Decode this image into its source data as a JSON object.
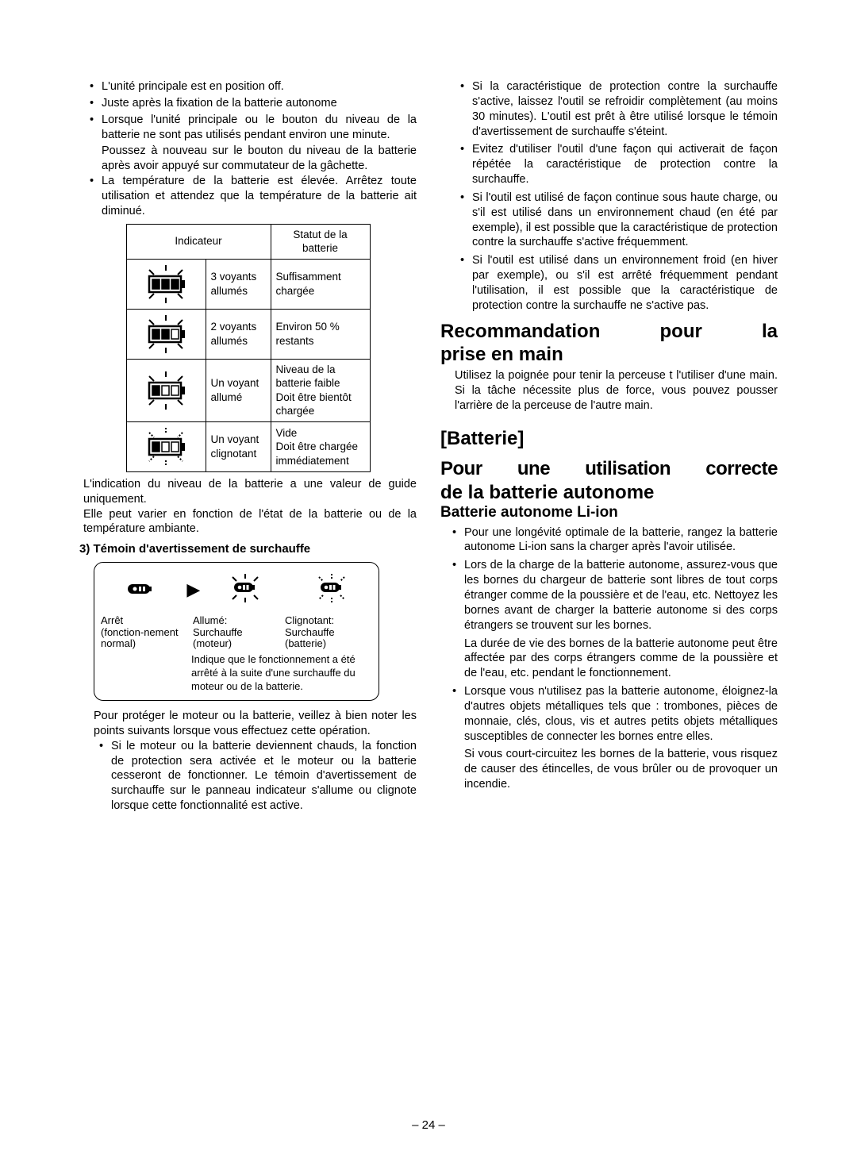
{
  "page_number": "– 24 –",
  "left": {
    "bullets1": [
      "L'unité principale est en position off.",
      "Juste après la fixation de la batterie autonome",
      "Lorsque l'unité principale ou le bouton du niveau de la batterie ne sont pas utilisés pendant environ une minute."
    ],
    "bullets1_sub": "Poussez à nouveau sur le bouton du niveau de la batterie après avoir appuyé sur commutateur de la gâchette.",
    "bullets1_b": "La température de la batterie est élevée. Arrêtez toute utilisation et attendez que la température de la batterie ait diminué.",
    "table": {
      "h1": "Indicateur",
      "h2": "Statut de la batterie",
      "rows": [
        {
          "segs": [
            1,
            1,
            1
          ],
          "flash": false,
          "c2": "3 voyants allumés",
          "c3": "Suffisamment chargée"
        },
        {
          "segs": [
            1,
            1,
            0
          ],
          "flash": false,
          "c2": "2 voyants allumés",
          "c3": "Environ 50 % restants"
        },
        {
          "segs": [
            1,
            0,
            0
          ],
          "flash": false,
          "c2": "Un voyant allumé",
          "c3": "Niveau de la batterie faible\nDoit être bientôt chargée"
        },
        {
          "segs": [
            1,
            0,
            0
          ],
          "flash": true,
          "c2": "Un voyant clignotant",
          "c3": "Vide\nDoit être chargée immédiatement"
        }
      ]
    },
    "after_table_1": "L'indication du niveau de la batterie a une valeur de guide uniquement.",
    "after_table_2": "Elle peut varier en fonction de l'état de la batterie ou de la température ambiante.",
    "sec3_title": "3) Témoin d'avertissement de surchauffe",
    "warn": {
      "c1a": "Arrêt",
      "c1b": "(fonction-nement normal)",
      "c2a": "Allumé:",
      "c2b": "Surchauffe (moteur)",
      "c3a": "Clignotant:",
      "c3b": "Surchauffe (batterie)",
      "note": "Indique que le fonctionnement a été arrêté à la suite d'une surchauffe du moteur ou de la batterie."
    },
    "after_warn": "Pour protéger le moteur ou la batterie, veillez à bien noter les points suivants lorsque vous effectuez cette opération.",
    "bullets2": [
      "Si le moteur ou la batterie deviennent chauds, la fonction de protection sera activée et le moteur ou la batterie cesseront de fonctionner. Le témoin d'avertissement de surchauffe sur le panneau indicateur s'allume ou clignote lorsque cette fonctionnalité est active."
    ]
  },
  "right": {
    "bullets_top": [
      "Si la caractéristique de protection contre la surchauffe s'active, laissez l'outil se refroidir complètement (au moins 30 minutes). L'outil est prêt à être utilisé lorsque le témoin d'avertissement de surchauffe s'éteint.",
      "Evitez d'utiliser l'outil d'une façon qui activerait de façon répétée la caractéristique de protection contre la surchauffe.",
      "Si l'outil est utilisé de façon continue sous haute charge, ou s'il est utilisé dans un environnement chaud (en été par exemple), il est possible que la caractéristique de protection contre la surchauffe s'active fréquemment.",
      "Si l'outil est utilisé dans un environnement froid (en hiver par exemple), ou s'il est arrêté fréquemment pendant l'utilisation, il est possible que la caractéristique de protection contre la surchauffe ne s'active pas."
    ],
    "h_recom_1": "Recommandation pour la",
    "h_recom_2": "prise en main",
    "recom_body": "Utilisez la poignée pour tenir la perceuse t l'utiliser d'une main. Si la tâche nécessite plus de force, vous pouvez pousser l'arrière de la perceuse de l'autre main.",
    "h_batt": "[Batterie]",
    "h_corr_1": "Pour une utilisation correcte",
    "h_corr_2": "de la batterie autonome",
    "h_liion": "Batterie autonome Li-ion",
    "bullets_batt": [
      "Pour une longévité optimale de la batterie, rangez la batterie autonome Li-ion sans la charger après l'avoir utilisée.",
      "Lors de la charge de la batterie autonome, assurez-vous que les bornes du chargeur de batterie sont libres de tout corps étranger comme de la poussière et de l'eau, etc. Nettoyez les bornes avant de charger la batterie autonome si des corps étrangers se trouvent sur les bornes."
    ],
    "batt_sub1": "La durée de vie des bornes de la batterie autonome peut être affectée par des corps étrangers comme de la poussière et de l'eau, etc. pendant le fonctionnement.",
    "bullets_batt2": [
      "Lorsque vous n'utilisez pas la batterie autonome, éloignez-la d'autres objets métalliques tels que : trombones, pièces de monnaie, clés, clous, vis et autres petits objets métalliques susceptibles de connecter les bornes entre elles."
    ],
    "batt_sub2": "Si vous court-circuitez les bornes de la batterie, vous risquez de causer des étincelles, de vous brûler ou de provoquer un incendie."
  },
  "colors": {
    "text": "#000000",
    "bg": "#ffffff",
    "border": "#000000"
  }
}
